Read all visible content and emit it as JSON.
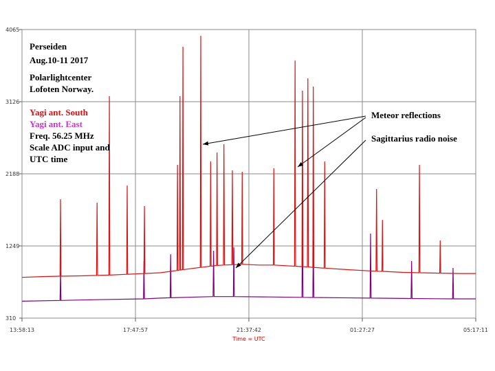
{
  "chart_data": {
    "type": "line",
    "notes": [
      "Perseiden",
      "Aug.10-11 2017",
      "Polarlightcenter",
      "Lofoten Norway."
    ],
    "notes2": [
      "Freq. 56.25 MHz",
      "Scale  ADC input and",
      "UTC time"
    ],
    "annotations": [
      "Meteor reflections",
      "Sagittarius radio noise"
    ],
    "xlabel": "Time = UTC",
    "xlim": [
      0,
      918.97
    ],
    "xticks": [
      {
        "value": 0,
        "label": "13:58:13"
      },
      {
        "value": 229.74,
        "label": "17:47:57"
      },
      {
        "value": 459.49,
        "label": "21:37:42"
      },
      {
        "value": 689.23,
        "label": "01:27:27"
      },
      {
        "value": 918.97,
        "label": "05:17:11"
      }
    ],
    "ylim": [
      310,
      4065
    ],
    "yticks": [
      310,
      1249,
      2188,
      3126,
      4065
    ],
    "grid": true,
    "series": [
      {
        "name": "Yagi ant. South",
        "color": "#e01010",
        "x": [
          0,
          40,
          77,
          78,
          79,
          120,
          151,
          152,
          153,
          176,
          177,
          178,
          212,
          213,
          214,
          247,
          248,
          249,
          280,
          314,
          315,
          316,
          319,
          320,
          321,
          325,
          326,
          327,
          361,
          362,
          363,
          381,
          382,
          383,
          394,
          395,
          396,
          408,
          409,
          410,
          425,
          426,
          427,
          445,
          446,
          447,
          480,
          509,
          510,
          511,
          552,
          553,
          554,
          567,
          568,
          569,
          578,
          579,
          580,
          589,
          590,
          591,
          612,
          613,
          614,
          660,
          717,
          718,
          719,
          729,
          730,
          731,
          770,
          804,
          805,
          806,
          846,
          847,
          848,
          890,
          919
        ],
        "values": [
          840,
          850,
          855,
          1857,
          855,
          860,
          865,
          1812,
          865,
          870,
          3198,
          870,
          880,
          2035,
          880,
          890,
          1767,
          890,
          900,
          930,
          2304,
          930,
          935,
          3198,
          935,
          940,
          3841,
          940,
          970,
          3984,
          970,
          985,
          2348,
          985,
          995,
          2465,
          995,
          1000,
          2572,
          1000,
          1005,
          2232,
          1005,
          1010,
          2214,
          1010,
          1000,
          1000,
          2259,
          1000,
          985,
          3662,
          985,
          980,
          3269,
          980,
          975,
          3430,
          975,
          970,
          3323,
          970,
          960,
          2348,
          960,
          940,
          920,
          1990,
          920,
          918,
          1588,
          918,
          905,
          900,
          2304,
          900,
          895,
          1320,
          895,
          890,
          890
        ]
      },
      {
        "name": "Yagi ant. East",
        "color": "#800080",
        "x": [
          0,
          77,
          78,
          79,
          150,
          246,
          247,
          248,
          280,
          300,
          301,
          302,
          360,
          387,
          388,
          389,
          428,
          429,
          430,
          500,
          567,
          568,
          569,
          589,
          590,
          591,
          705,
          706,
          707,
          788,
          789,
          790,
          872,
          873,
          874,
          919
        ],
        "values": [
          530,
          540,
          918,
          540,
          550,
          560,
          1052,
          560,
          570,
          575,
          1141,
          575,
          585,
          590,
          1186,
          590,
          590,
          1230,
          590,
          585,
          580,
          1589,
          580,
          578,
          1320,
          578,
          570,
          1410,
          570,
          565,
          1052,
          565,
          560,
          963,
          560,
          560
        ]
      }
    ]
  }
}
